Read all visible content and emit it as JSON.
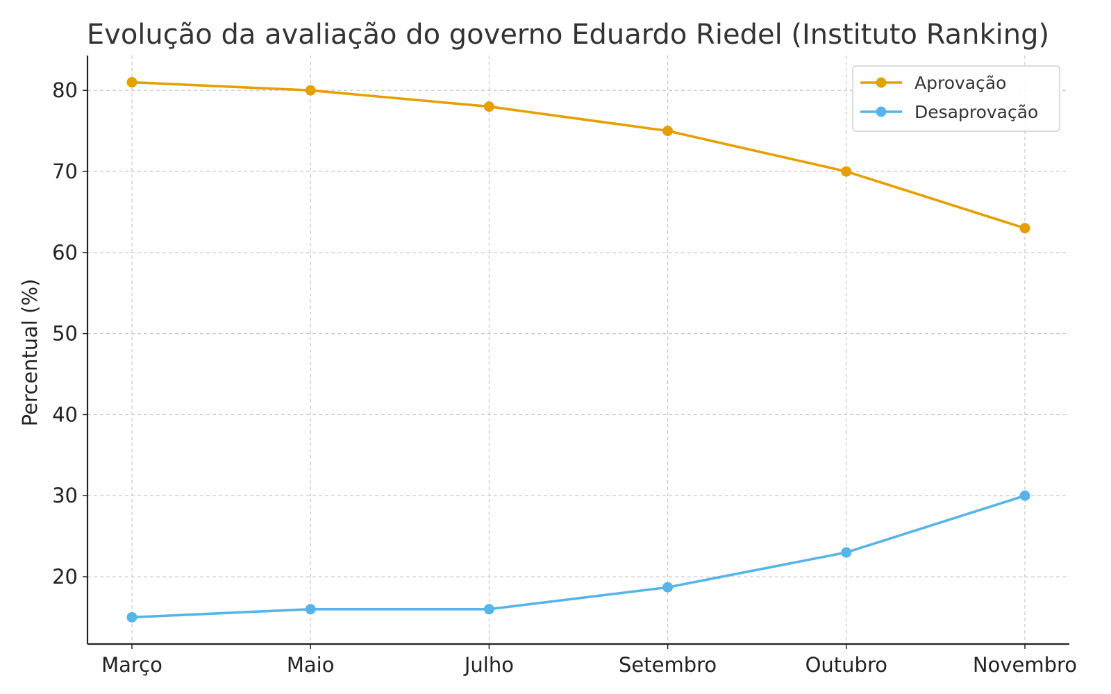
{
  "chart_data": {
    "type": "line",
    "title": "Evolução da avaliação do governo Eduardo Riedel (Instituto Ranking)",
    "xlabel": "",
    "ylabel": "Percentual (%)",
    "categories": [
      "Março",
      "Maio",
      "Julho",
      "Setembro",
      "Outubro",
      "Novembro"
    ],
    "series": [
      {
        "name": "Aprovação",
        "color": "#E69F00",
        "values": [
          81,
          80,
          78,
          75,
          70,
          63
        ]
      },
      {
        "name": "Desaprovação",
        "color": "#56B4E9",
        "values": [
          15,
          16,
          16,
          18.7,
          23,
          30
        ]
      }
    ],
    "ylim": [
      11.7,
      84.3
    ],
    "yticks": [
      20,
      30,
      40,
      50,
      60,
      70,
      80
    ],
    "grid": true,
    "legend_position": "top-right"
  }
}
